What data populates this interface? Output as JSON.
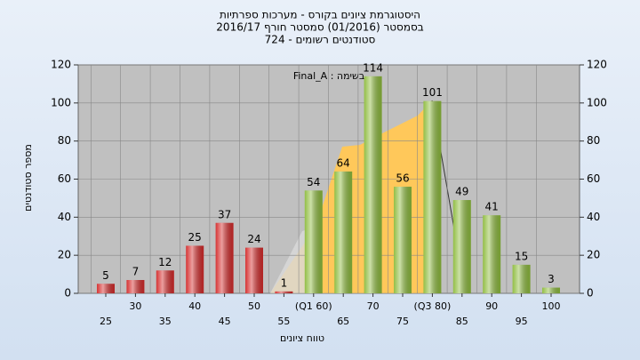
{
  "chart_data": {
    "type": "bar",
    "title": "היסטוגרמת ציונים בקורס - מערכות ספרתיות",
    "subtitle": "בסמסטר  (01/2016)  סמסטר חורף 2016/17",
    "subtitle2": "סטודנטים רשומים - 724",
    "annotation": "בשימה : Final_A",
    "x_label": "טווח ציונים",
    "y_label": "מספר סטודנטים",
    "categories": [
      "25",
      "30",
      "35",
      "40",
      "45",
      "50",
      "55",
      "(Q1 60)",
      "65",
      "70",
      "75",
      "(Q3 80)",
      "85",
      "90",
      "95",
      "100"
    ],
    "values": [
      5,
      7,
      12,
      25,
      37,
      24,
      1,
      54,
      64,
      114,
      56,
      101,
      49,
      41,
      15,
      3
    ],
    "colors": [
      "#d42a2a",
      "#d42a2a",
      "#d42a2a",
      "#d42a2a",
      "#d42a2a",
      "#d42a2a",
      "#d42a2a",
      "#8dbb3c",
      "#8dbb3c",
      "#8dbb3c",
      "#8dbb3c",
      "#8dbb3c",
      "#8dbb3c",
      "#8dbb3c",
      "#8dbb3c",
      "#8dbb3c"
    ],
    "ylim": [
      0,
      120
    ],
    "yticks": [
      0,
      20,
      40,
      60,
      80,
      100,
      120
    ],
    "y2lim": [
      0,
      120
    ],
    "y2ticks": [
      0,
      20,
      40,
      60,
      80,
      100,
      120
    ],
    "grid": true
  }
}
